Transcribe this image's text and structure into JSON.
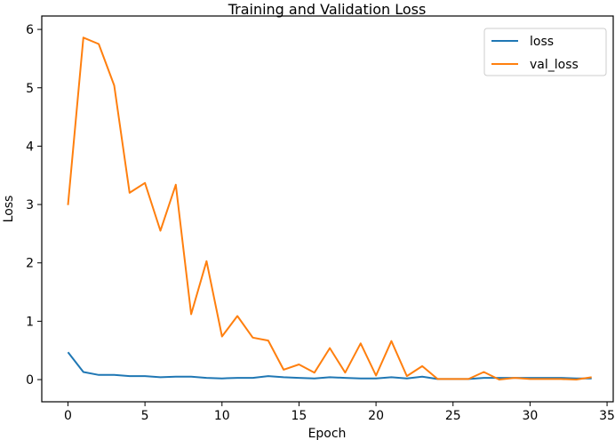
{
  "chart_data": {
    "type": "line",
    "title": "Training and Validation Loss",
    "xlabel": "Epoch",
    "ylabel": "Loss",
    "xlim": [
      -1.7,
      35.4
    ],
    "ylim": [
      -0.38,
      6.23
    ],
    "xticks": [
      0,
      5,
      10,
      15,
      20,
      25,
      30,
      35
    ],
    "yticks": [
      0,
      1,
      2,
      3,
      4,
      5,
      6
    ],
    "grid": false,
    "legend_position": "top-right",
    "x": [
      0,
      1,
      2,
      3,
      4,
      5,
      6,
      7,
      8,
      9,
      10,
      11,
      12,
      13,
      14,
      15,
      16,
      17,
      18,
      19,
      20,
      21,
      22,
      23,
      24,
      25,
      26,
      27,
      28,
      29,
      30,
      31,
      32,
      33,
      34
    ],
    "series": [
      {
        "name": "loss",
        "color": "#1f77b4",
        "values": [
          0.47,
          0.13,
          0.08,
          0.08,
          0.06,
          0.06,
          0.04,
          0.05,
          0.05,
          0.03,
          0.02,
          0.03,
          0.03,
          0.06,
          0.04,
          0.03,
          0.02,
          0.04,
          0.03,
          0.02,
          0.02,
          0.04,
          0.02,
          0.05,
          0.01,
          0.01,
          0.01,
          0.03,
          0.03,
          0.03,
          0.03,
          0.03,
          0.03,
          0.02,
          0.02
        ]
      },
      {
        "name": "val_loss",
        "color": "#ff7f0e",
        "values": [
          2.99,
          5.86,
          5.75,
          5.04,
          3.2,
          3.37,
          2.55,
          3.34,
          1.12,
          2.03,
          0.74,
          1.09,
          0.72,
          0.67,
          0.17,
          0.26,
          0.12,
          0.54,
          0.12,
          0.62,
          0.07,
          0.66,
          0.06,
          0.23,
          0.01,
          0.01,
          0.01,
          0.13,
          0.0,
          0.03,
          0.01,
          0.01,
          0.01,
          0.0,
          0.04
        ]
      }
    ]
  }
}
